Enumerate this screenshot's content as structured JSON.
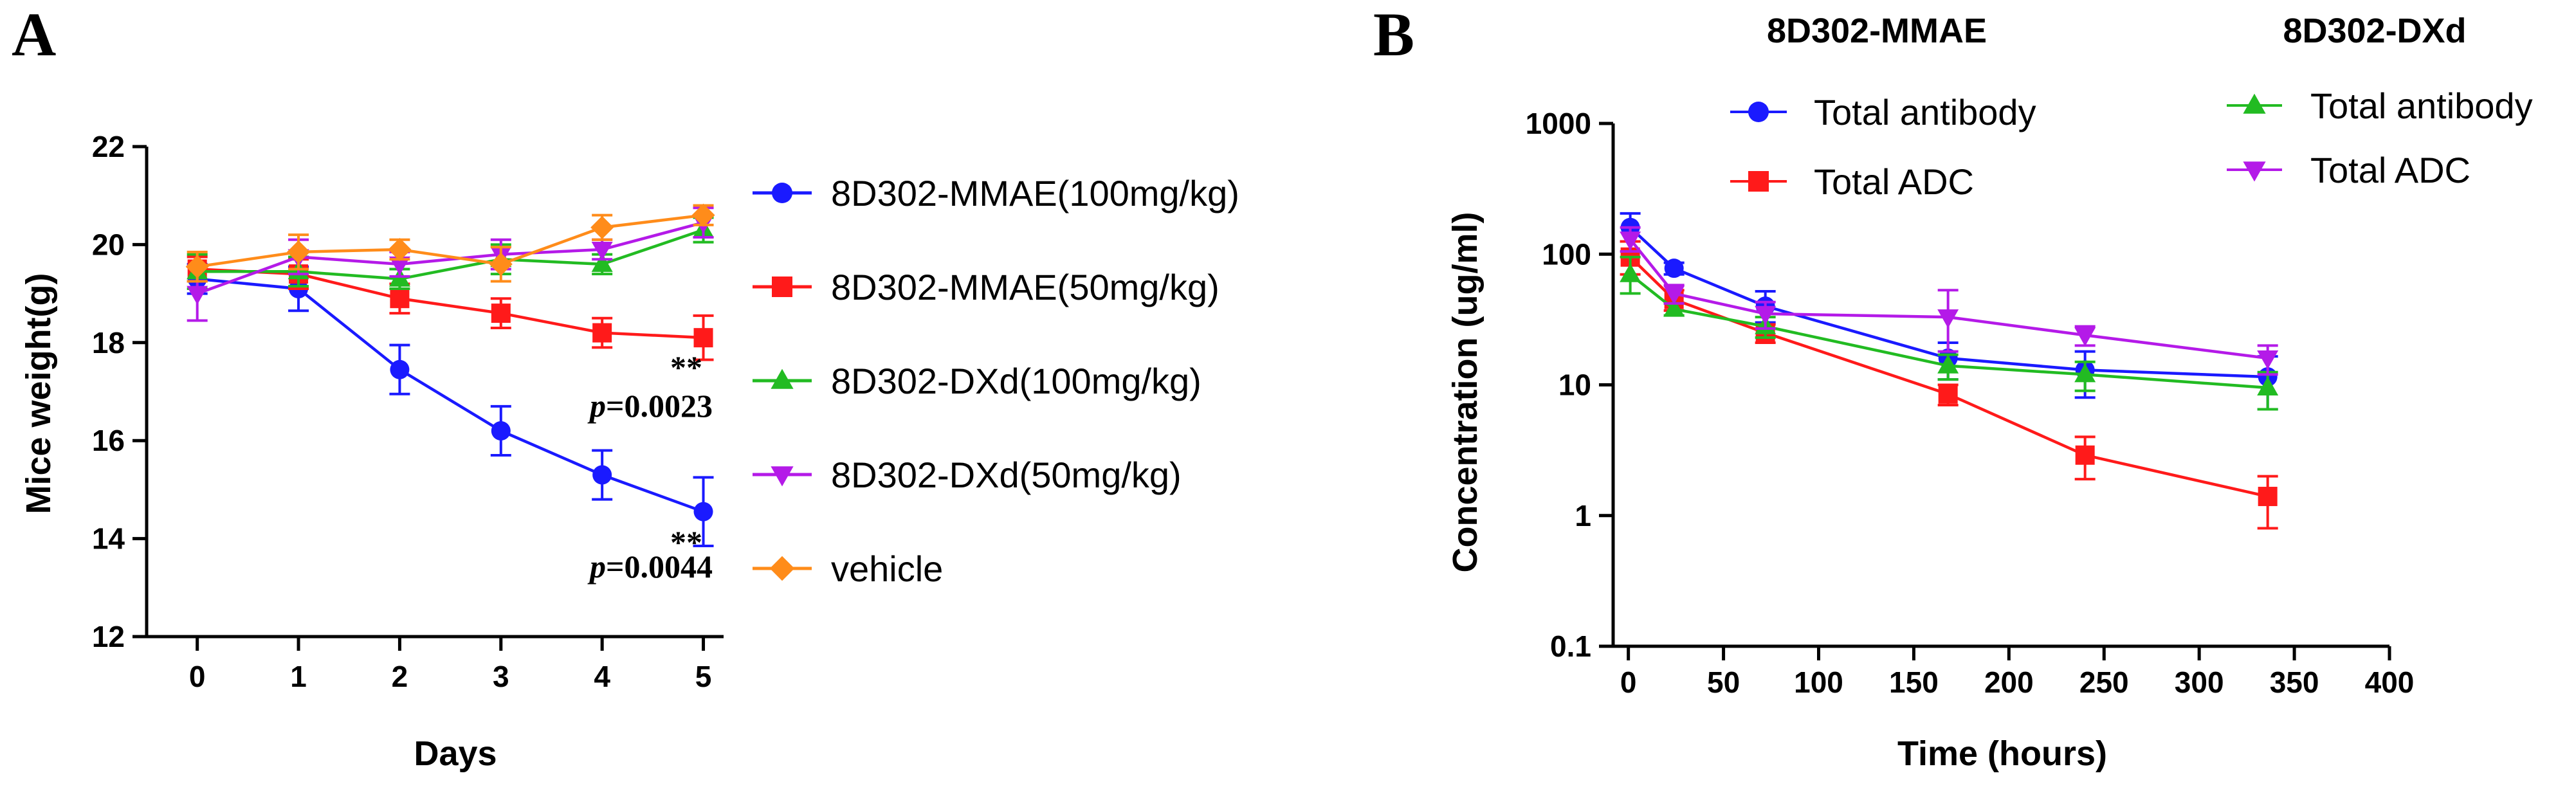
{
  "panel_labels": {
    "a": "A",
    "b": "B"
  },
  "chart_data": [
    {
      "panel": "A",
      "type": "line",
      "title": "",
      "xlabel": "Days",
      "ylabel": "Mice weight(g)",
      "xlim": [
        -0.5,
        5.2
      ],
      "ylim": [
        12,
        22
      ],
      "x_ticks": [
        "0",
        "1",
        "2",
        "3",
        "4",
        "5"
      ],
      "y_ticks": [
        "12",
        "14",
        "16",
        "18",
        "20",
        "22"
      ],
      "grid": false,
      "legend_position": "right",
      "x": [
        0,
        1,
        2,
        3,
        4,
        5
      ],
      "series": [
        {
          "name": "8D302-MMAE(100mg/kg)",
          "color": "#1a1aff",
          "marker": "circle",
          "values": [
            19.3,
            19.1,
            17.45,
            16.2,
            15.3,
            14.55
          ],
          "errors": [
            0.3,
            0.45,
            0.5,
            0.5,
            0.5,
            0.7
          ]
        },
        {
          "name": "8D302-MMAE(50mg/kg)",
          "color": "#ff1a1a",
          "marker": "square",
          "values": [
            19.5,
            19.4,
            18.9,
            18.6,
            18.2,
            18.1
          ],
          "errors": [
            0.25,
            0.3,
            0.3,
            0.3,
            0.3,
            0.45
          ]
        },
        {
          "name": "8D302-DXd(100mg/kg)",
          "color": "#22bb22",
          "marker": "triangle-up",
          "values": [
            19.45,
            19.45,
            19.3,
            19.7,
            19.6,
            20.3
          ],
          "errors": [
            0.35,
            0.3,
            0.2,
            0.3,
            0.2,
            0.25
          ]
        },
        {
          "name": "8D302-DXd(50mg/kg)",
          "color": "#b41ae8",
          "marker": "triangle-down",
          "values": [
            19.0,
            19.75,
            19.6,
            19.8,
            19.9,
            20.45
          ],
          "errors": [
            0.55,
            0.35,
            0.25,
            0.3,
            0.2,
            0.3
          ]
        },
        {
          "name": "vehicle",
          "color": "#ff8c1a",
          "marker": "diamond",
          "values": [
            19.55,
            19.85,
            19.9,
            19.6,
            20.35,
            20.6
          ],
          "errors": [
            0.3,
            0.35,
            0.2,
            0.35,
            0.25,
            0.2
          ]
        }
      ],
      "annotations": [
        {
          "stars": "**",
          "p_label": "p",
          "p_value": "=0.0023",
          "near_series": "8D302-MMAE(50mg/kg)"
        },
        {
          "stars": "**",
          "p_label": "p",
          "p_value": "=0.0044",
          "near_series": "8D302-MMAE(100mg/kg)"
        }
      ]
    },
    {
      "panel": "B",
      "type": "line",
      "title": "",
      "xlabel": "Time (hours)",
      "ylabel": "Concentration (ug/ml)",
      "xlim": [
        -8,
        400
      ],
      "ylim": [
        0.1,
        1000
      ],
      "y_scale": "log",
      "x_ticks": [
        "0",
        "50",
        "100",
        "150",
        "200",
        "250",
        "300",
        "350",
        "400"
      ],
      "y_ticks": [
        "0.1",
        "1",
        "10",
        "100",
        "1000"
      ],
      "grid": false,
      "legend_position": "top",
      "legend_groups": [
        "8D302-MMAE",
        "8D302-DXd"
      ],
      "series": [
        {
          "group": "8D302-MMAE",
          "name": "Total antibody",
          "color": "#1a1aff",
          "marker": "circle",
          "x": [
            1,
            24,
            72,
            168,
            240,
            336
          ],
          "values": [
            160,
            78,
            40,
            16,
            13,
            11.5
          ],
          "errors_up": [
            45,
            8,
            12,
            5,
            5,
            5
          ],
          "errors_down": [
            35,
            8,
            10,
            5,
            5,
            5
          ]
        },
        {
          "group": "8D302-MMAE",
          "name": "Total ADC",
          "color": "#ff1a1a",
          "marker": "square",
          "x": [
            1,
            24,
            72,
            168,
            240,
            336
          ],
          "values": [
            95,
            45,
            25,
            8.5,
            2.9,
            1.4
          ],
          "errors_up": [
            30,
            8,
            4,
            1.5,
            1.1,
            0.6
          ],
          "errors_down": [
            25,
            8,
            4,
            1.5,
            1.0,
            0.6
          ]
        },
        {
          "group": "8D302-DXd",
          "name": "Total antibody",
          "color": "#22bb22",
          "marker": "triangle-up",
          "x": [
            1,
            24,
            72,
            168,
            240,
            336
          ],
          "values": [
            70,
            38,
            28,
            14,
            12,
            9.5
          ],
          "errors_up": [
            25,
            4,
            5,
            3,
            3,
            3
          ],
          "errors_down": [
            20,
            4,
            5,
            3,
            3,
            3
          ]
        },
        {
          "group": "8D302-DXd",
          "name": "Total ADC",
          "color": "#b41ae8",
          "marker": "triangle-down",
          "x": [
            1,
            24,
            72,
            168,
            240,
            336
          ],
          "values": [
            130,
            50,
            35,
            33,
            24,
            16
          ],
          "errors_up": [
            30,
            8,
            8,
            20,
            4,
            4
          ],
          "errors_down": [
            25,
            8,
            8,
            15,
            4,
            4
          ]
        }
      ]
    }
  ]
}
